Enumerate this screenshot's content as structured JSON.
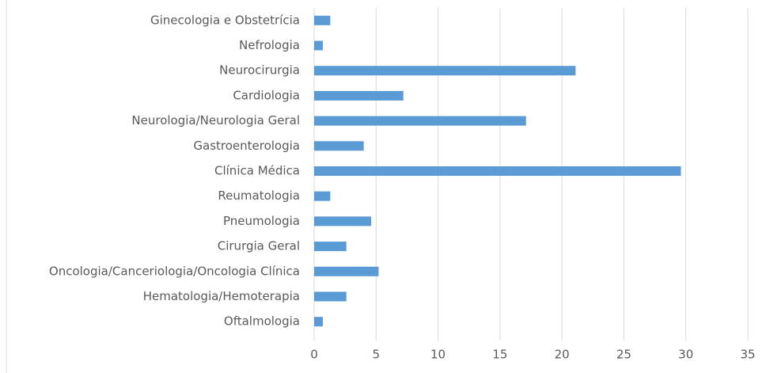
{
  "chart_data": {
    "type": "bar",
    "orientation": "horizontal",
    "categories": [
      "Ginecologia e Obstetrícia",
      "Nefrologia",
      "Neurocirurgia",
      "Cardiologia",
      "Neurologia/Neurologia Geral",
      "Gastroenterologia",
      "Clínica Médica",
      "Reumatologia",
      "Pneumologia",
      "Cirurgia Geral",
      "Oncologia/Canceriologia/Oncologia Clínica",
      "Hematologia/Hemoterapia",
      "Oftalmologia"
    ],
    "values": [
      1.3,
      0.7,
      21.1,
      7.2,
      17.1,
      4.0,
      29.6,
      1.3,
      4.6,
      2.6,
      5.2,
      2.6,
      0.7
    ],
    "color": "#5b9bd5",
    "xlim": [
      0,
      35
    ],
    "xticks": [
      0,
      5,
      10,
      15,
      20,
      25,
      30,
      35
    ],
    "grid": true
  }
}
